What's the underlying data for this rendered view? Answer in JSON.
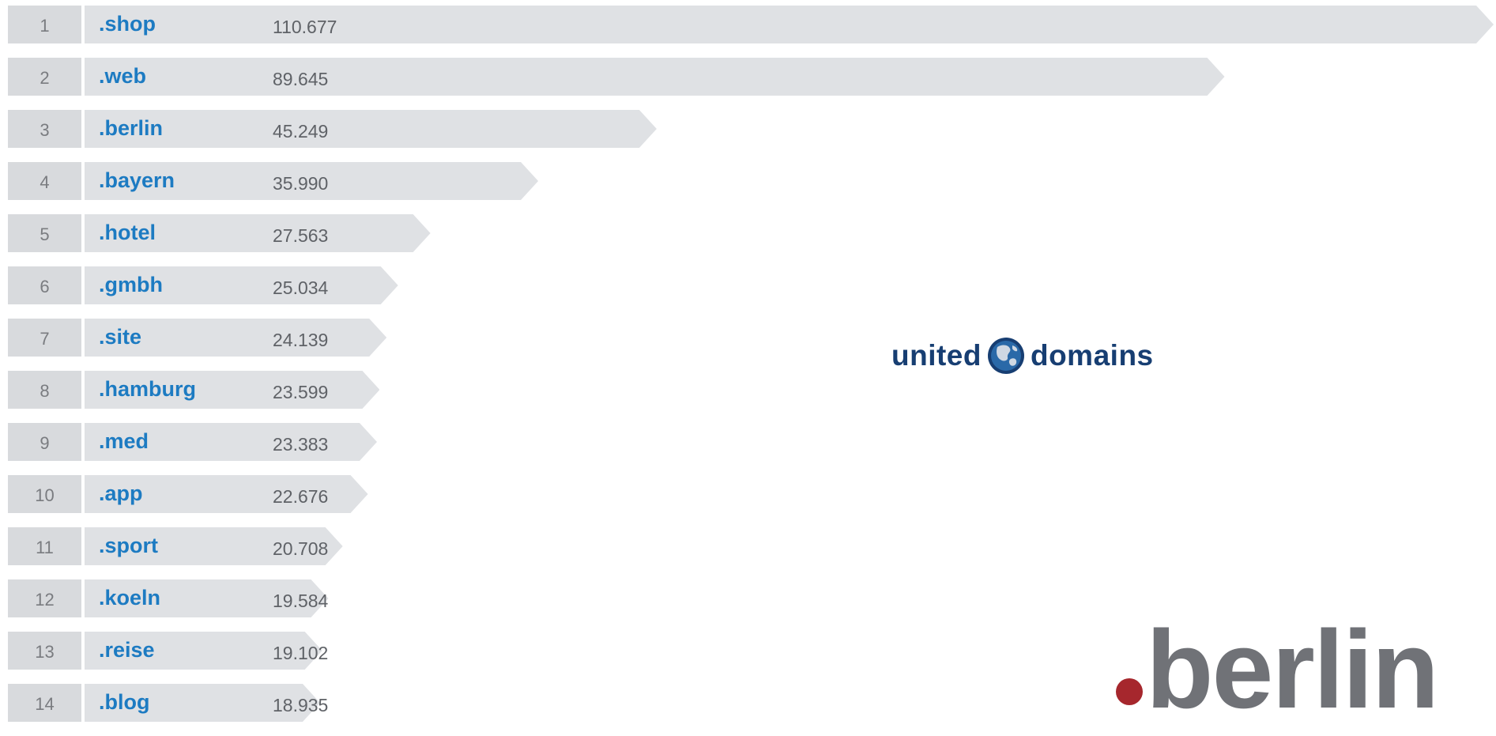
{
  "chart_data": {
    "type": "bar",
    "orientation": "horizontal",
    "grid": false,
    "legend": "none",
    "ranks": [
      "1",
      "2",
      "3",
      "4",
      "5",
      "6",
      "7",
      "8",
      "9",
      "10",
      "11",
      "12",
      "13",
      "14"
    ],
    "categories": [
      ".shop",
      ".web",
      ".berlin",
      ".bayern",
      ".hotel",
      ".gmbh",
      ".site",
      ".hamburg",
      ".med",
      ".app",
      ".sport",
      ".koeln",
      ".reise",
      ".blog"
    ],
    "values": [
      110677,
      89645,
      45249,
      35990,
      27563,
      25034,
      24139,
      23599,
      23383,
      22676,
      20708,
      19584,
      19102,
      18935
    ],
    "value_labels": [
      "110.677",
      "89.645",
      "45.249",
      "35.990",
      "27.563",
      "25.034",
      "24.139",
      "23.599",
      "23.383",
      "22.676",
      "20.708",
      "19.584",
      "19.102",
      "18.935"
    ],
    "colors": {
      "bar": "#dfe1e4",
      "rank_cell": "#d8dadd",
      "tld_text": "#1d7bc2",
      "value_text": "#5f6267",
      "rank_text": "#7a7c80"
    }
  },
  "logos": {
    "united_domains": {
      "text_left": "united",
      "text_right": "domains",
      "icon": "globe-icon",
      "color": "#173e72"
    },
    "dot_berlin": {
      "text": "berlin",
      "dot_color": "#a6272d",
      "text_color": "#707277"
    }
  }
}
